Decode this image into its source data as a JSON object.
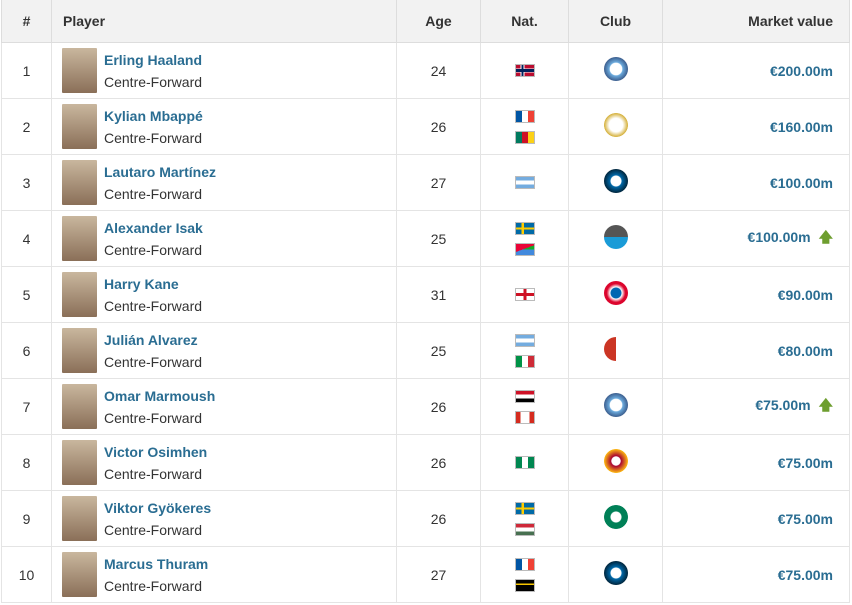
{
  "headers": {
    "rank": "#",
    "player": "Player",
    "age": "Age",
    "nat": "Nat.",
    "club": "Club",
    "value": "Market value"
  },
  "colors": {
    "link": "#2a6d92",
    "up_arrow": "#6e9e2f",
    "header_bg": "#f2f2f2"
  },
  "rows": [
    {
      "rank": "1",
      "name": "Erling Haaland",
      "position": "Centre-Forward",
      "age": "24",
      "flags": [
        "norway"
      ],
      "club": "manchester-city",
      "value": "€200.00m",
      "trend": ""
    },
    {
      "rank": "2",
      "name": "Kylian Mbappé",
      "position": "Centre-Forward",
      "age": "26",
      "flags": [
        "france",
        "cameroon"
      ],
      "club": "real-madrid",
      "value": "€160.00m",
      "trend": ""
    },
    {
      "rank": "3",
      "name": "Lautaro Martínez",
      "position": "Centre-Forward",
      "age": "27",
      "flags": [
        "argentina"
      ],
      "club": "inter-milan",
      "value": "€100.00m",
      "trend": ""
    },
    {
      "rank": "4",
      "name": "Alexander Isak",
      "position": "Centre-Forward",
      "age": "25",
      "flags": [
        "sweden",
        "eritrea"
      ],
      "club": "newcastle",
      "value": "€100.00m",
      "trend": "up"
    },
    {
      "rank": "5",
      "name": "Harry Kane",
      "position": "Centre-Forward",
      "age": "31",
      "flags": [
        "england"
      ],
      "club": "bayern-munich",
      "value": "€90.00m",
      "trend": ""
    },
    {
      "rank": "6",
      "name": "Julián Alvarez",
      "position": "Centre-Forward",
      "age": "25",
      "flags": [
        "argentina",
        "italy"
      ],
      "club": "atletico-madrid",
      "value": "€80.00m",
      "trend": ""
    },
    {
      "rank": "7",
      "name": "Omar Marmoush",
      "position": "Centre-Forward",
      "age": "26",
      "flags": [
        "egypt",
        "canada"
      ],
      "club": "manchester-city",
      "value": "€75.00m",
      "trend": "up"
    },
    {
      "rank": "8",
      "name": "Victor Osimhen",
      "position": "Centre-Forward",
      "age": "26",
      "flags": [
        "nigeria"
      ],
      "club": "galatasaray",
      "value": "€75.00m",
      "trend": ""
    },
    {
      "rank": "9",
      "name": "Viktor Gyökeres",
      "position": "Centre-Forward",
      "age": "26",
      "flags": [
        "sweden",
        "hungary"
      ],
      "club": "sporting-cp",
      "value": "€75.00m",
      "trend": ""
    },
    {
      "rank": "10",
      "name": "Marcus Thuram",
      "position": "Centre-Forward",
      "age": "27",
      "flags": [
        "france",
        "guadeloupe"
      ],
      "club": "inter-milan",
      "value": "€75.00m",
      "trend": ""
    }
  ]
}
